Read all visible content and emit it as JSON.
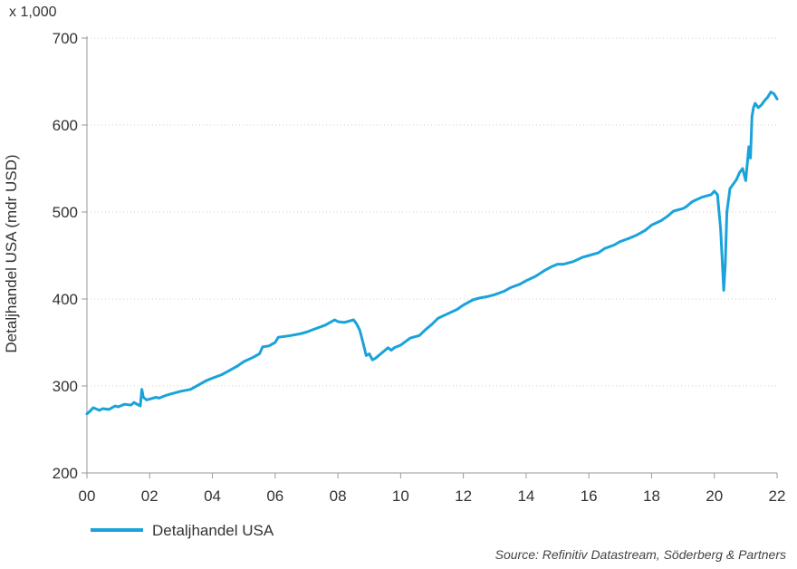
{
  "chart_data": {
    "type": "line",
    "ylabel": "Detaljhandel USA (mdr USD)",
    "y_multiplier": "x 1,000",
    "ylim": [
      200,
      700
    ],
    "yticks": [
      200,
      300,
      400,
      500,
      600,
      700
    ],
    "xlim": [
      2000,
      2022
    ],
    "xticks": [
      {
        "value": 2000,
        "label": "00"
      },
      {
        "value": 2002,
        "label": "02"
      },
      {
        "value": 2004,
        "label": "04"
      },
      {
        "value": 2006,
        "label": "06"
      },
      {
        "value": 2008,
        "label": "08"
      },
      {
        "value": 2010,
        "label": "10"
      },
      {
        "value": 2012,
        "label": "12"
      },
      {
        "value": 2014,
        "label": "14"
      },
      {
        "value": 2016,
        "label": "16"
      },
      {
        "value": 2018,
        "label": "18"
      },
      {
        "value": 2020,
        "label": "20"
      },
      {
        "value": 2022,
        "label": "22"
      }
    ],
    "grid": "horizontal-dotted",
    "legend_position": "bottom-left",
    "colors": {
      "series": "#1aa3db",
      "axis": "#999999",
      "grid": "#cccccc"
    },
    "series": [
      {
        "name": "Detaljhandel USA",
        "x": [
          2000.0,
          2000.1,
          2000.2,
          2000.4,
          2000.5,
          2000.7,
          2000.9,
          2001.0,
          2001.2,
          2001.4,
          2001.5,
          2001.6,
          2001.7,
          2001.75,
          2001.8,
          2001.9,
          2002.0,
          2002.2,
          2002.3,
          2002.5,
          2002.7,
          2003.0,
          2003.3,
          2003.5,
          2003.8,
          2004.0,
          2004.3,
          2004.5,
          2004.8,
          2005.0,
          2005.3,
          2005.5,
          2005.6,
          2005.8,
          2006.0,
          2006.1,
          2006.3,
          2006.5,
          2006.8,
          2007.0,
          2007.3,
          2007.6,
          2007.9,
          2008.0,
          2008.2,
          2008.4,
          2008.5,
          2008.6,
          2008.7,
          2008.8,
          2008.9,
          2009.0,
          2009.1,
          2009.2,
          2009.4,
          2009.6,
          2009.7,
          2009.8,
          2010.0,
          2010.3,
          2010.4,
          2010.6,
          2010.8,
          2011.0,
          2011.2,
          2011.5,
          2011.8,
          2012.0,
          2012.3,
          2012.5,
          2012.8,
          2013.0,
          2013.3,
          2013.5,
          2013.8,
          2014.0,
          2014.3,
          2014.6,
          2014.8,
          2015.0,
          2015.2,
          2015.5,
          2015.8,
          2016.0,
          2016.3,
          2016.5,
          2016.8,
          2017.0,
          2017.3,
          2017.5,
          2017.8,
          2018.0,
          2018.3,
          2018.5,
          2018.7,
          2018.9,
          2019.0,
          2019.1,
          2019.3,
          2019.6,
          2019.9,
          2020.0,
          2020.1,
          2020.2,
          2020.25,
          2020.3,
          2020.35,
          2020.4,
          2020.5,
          2020.7,
          2020.8,
          2020.9,
          2021.0,
          2021.1,
          2021.15,
          2021.2,
          2021.25,
          2021.3,
          2021.4,
          2021.5,
          2021.6,
          2021.7,
          2021.8,
          2021.9,
          2022.0
        ],
        "values": [
          268,
          271,
          275,
          272,
          274,
          273,
          277,
          276,
          279,
          278,
          281,
          279,
          277,
          296,
          287,
          284,
          285,
          287,
          286,
          289,
          291,
          294,
          296,
          300,
          306,
          309,
          313,
          317,
          323,
          328,
          333,
          337,
          345,
          346,
          350,
          356,
          357,
          358,
          360,
          362,
          366,
          370,
          376,
          374,
          373,
          375,
          376,
          371,
          364,
          350,
          335,
          337,
          330,
          332,
          338,
          344,
          341,
          344,
          347,
          355,
          356,
          358,
          365,
          371,
          378,
          383,
          388,
          393,
          399,
          401,
          403,
          405,
          409,
          413,
          417,
          421,
          426,
          433,
          437,
          440,
          440,
          443,
          448,
          450,
          453,
          458,
          462,
          466,
          470,
          473,
          479,
          485,
          490,
          495,
          501,
          503,
          504,
          506,
          512,
          517,
          520,
          524,
          520,
          480,
          445,
          410,
          440,
          500,
          527,
          537,
          545,
          550,
          536,
          575,
          562,
          610,
          620,
          625,
          620,
          623,
          628,
          632,
          638,
          636,
          630
        ]
      }
    ]
  },
  "source": "Source: Refinitiv Datastream, Söderberg & Partners"
}
